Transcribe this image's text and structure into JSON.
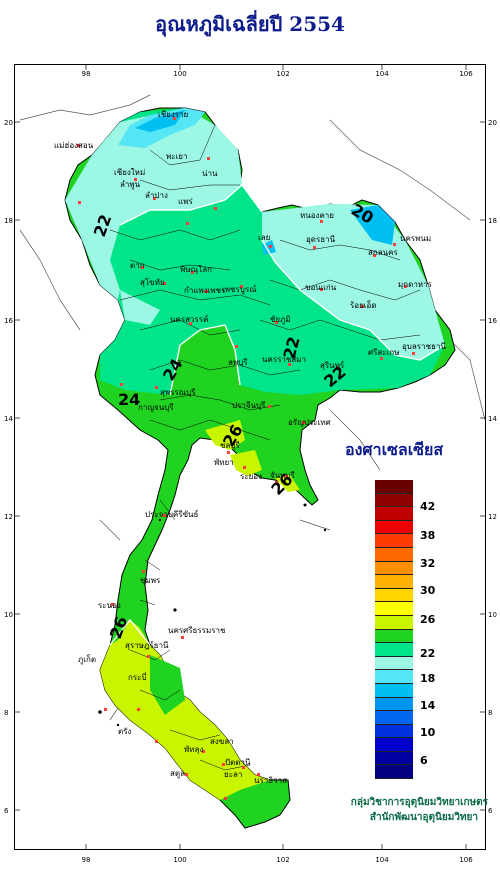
{
  "title": "อุณหภูมิเฉลี่ยปี  2554",
  "unit_label": "องศาเซลเซียส",
  "credits": {
    "line1": "กลุ่มวิชาการอุตุนิยมวิทยาเกษตร",
    "line2": "สำนักพัฒนาอุตุนิยมวิทยา"
  },
  "axes": {
    "longitude_ticks": [
      "98",
      "100",
      "102",
      "104",
      "106"
    ],
    "latitude_ticks": [
      "20",
      "18",
      "16",
      "14",
      "12",
      "10",
      "8",
      "6"
    ]
  },
  "legend": {
    "colors": [
      "#6b0000",
      "#8f0000",
      "#c00000",
      "#ee0000",
      "#ff3b00",
      "#ff6a00",
      "#ff8f00",
      "#ffb000",
      "#ffd400",
      "#ffff00",
      "#c9f500",
      "#21d321",
      "#00e58a",
      "#9cf7e4",
      "#55e6f5",
      "#00bff2",
      "#0096f0",
      "#0066ee",
      "#0033dd",
      "#0000cc",
      "#0000a0",
      "#000080"
    ],
    "labels": [
      "42",
      "38",
      "32",
      "30",
      "26",
      "22",
      "18",
      "14",
      "10",
      "6"
    ]
  },
  "contour_labels": [
    "22",
    "24",
    "24",
    "26",
    "26",
    "22",
    "22",
    "20",
    "26"
  ],
  "provinces": [
    "เชียงราย",
    "แม่ฮ่องสอน",
    "พะเยา",
    "เชียงใหม่",
    "ลำพูน",
    "น่าน",
    "แพร่",
    "ลำปาง",
    "หนองคาย",
    "นครพนม",
    "อุดรธานี",
    "สกลนคร",
    "เลย",
    "มุกดาหาร",
    "ขอนแก่น",
    "ตาก",
    "พิษณุโลก",
    "สุโขทัย",
    "กำแพงเพชร",
    "เพชรบูรณ์",
    "ร้อยเอ็ด",
    "ชัยภูมิ",
    "นครสวรรค์",
    "ลพบุรี",
    "อุบลราชธานี",
    "ศรีสะเกษ",
    "สุรินทร์",
    "นครราชสีมา",
    "สุพรรณบุรี",
    "กาญจนบุรี",
    "ปราจีนบุรี",
    "อรัญประเทศ",
    "ชลบุรี",
    "พัทยา",
    "ระยอง",
    "จันทบุรี",
    "ประจวบคีรีขันธ์",
    "ชุมพร",
    "ระนอง",
    "นครศรีธรรมราช",
    "สุราษฎร์ธานี",
    "ภูเก็ต",
    "กระบี่",
    "ตรัง",
    "พัทลุง",
    "สงขลา",
    "ปัตตานี",
    "ยะลา",
    "นราธิวาส",
    "สตูล"
  ]
}
